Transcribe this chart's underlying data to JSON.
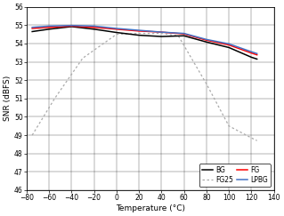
{
  "title": "",
  "xlabel": "Temperature (°C)",
  "ylabel": "SNR (dBFS)",
  "xlim": [
    -80,
    140
  ],
  "ylim": [
    46,
    56
  ],
  "xticks": [
    -80,
    -60,
    -40,
    -20,
    0,
    20,
    40,
    60,
    80,
    100,
    120,
    140
  ],
  "yticks": [
    46,
    47,
    48,
    49,
    50,
    51,
    52,
    53,
    54,
    55,
    56
  ],
  "bg_x": [
    -75,
    -60,
    -40,
    -20,
    0,
    20,
    40,
    60,
    80,
    100,
    120,
    125
  ],
  "bg_y": [
    54.65,
    54.78,
    54.92,
    54.78,
    54.6,
    54.45,
    54.38,
    54.42,
    54.08,
    53.78,
    53.25,
    53.15
  ],
  "fg_x": [
    -75,
    -60,
    -40,
    -20,
    0,
    20,
    40,
    60,
    80,
    100,
    120,
    125
  ],
  "fg_y": [
    54.82,
    54.88,
    54.95,
    54.88,
    54.78,
    54.68,
    54.62,
    54.52,
    54.18,
    53.92,
    53.48,
    53.38
  ],
  "fg25_x": [
    -75,
    -55,
    -30,
    0,
    20,
    40,
    55,
    80,
    100,
    120,
    125
  ],
  "fg25_y": [
    49.0,
    51.0,
    53.2,
    54.5,
    54.55,
    54.55,
    54.42,
    51.8,
    49.5,
    48.85,
    48.7
  ],
  "lpbg_x": [
    -75,
    -60,
    -40,
    -20,
    0,
    20,
    40,
    60,
    80,
    100,
    120,
    125
  ],
  "lpbg_y": [
    54.88,
    54.95,
    54.98,
    54.95,
    54.82,
    54.72,
    54.62,
    54.55,
    54.22,
    53.98,
    53.55,
    53.45
  ],
  "bg_color": "#000000",
  "fg_color": "#ff0000",
  "fg25_color": "#aaaaaa",
  "lpbg_color": "#4472c4",
  "grid_color": "#000000",
  "background_color": "#ffffff",
  "legend_entries": [
    [
      "BG",
      "FG25"
    ],
    [
      "FG",
      "LPBG"
    ]
  ]
}
